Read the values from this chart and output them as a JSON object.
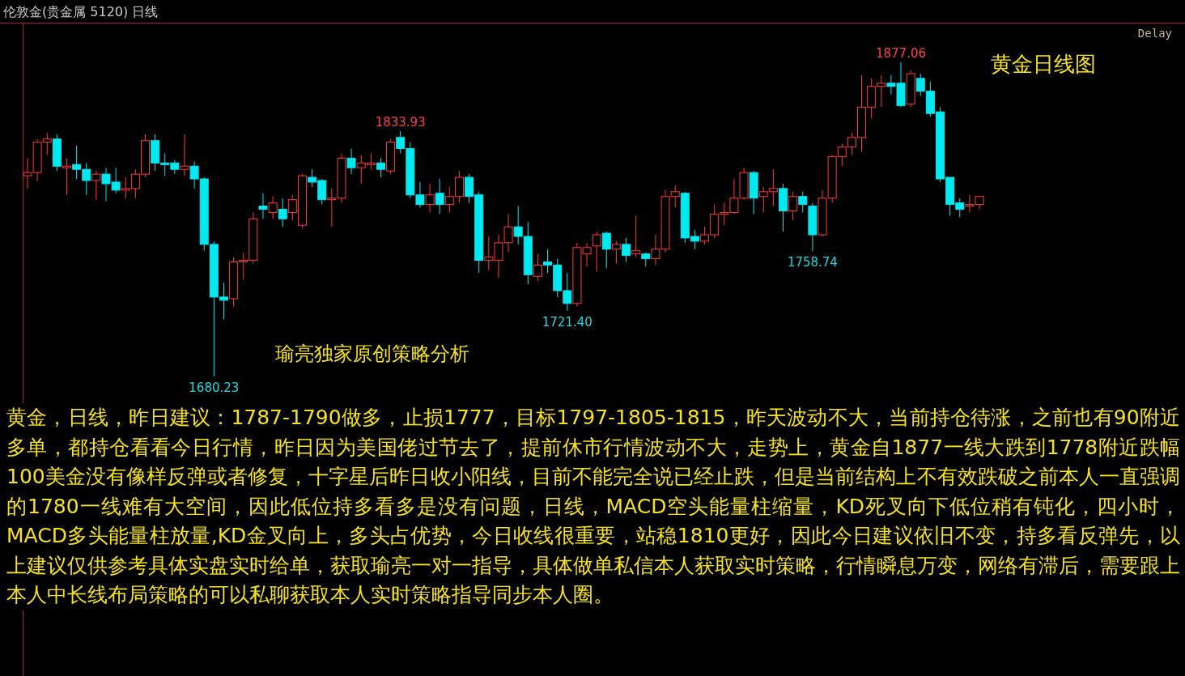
{
  "chart_data": {
    "type": "candlestick",
    "title": "伦敦金(贵金属 5120)  日线",
    "categories": [
      null,
      null,
      null,
      null,
      null,
      null,
      null,
      null,
      null,
      null,
      null,
      null,
      null,
      null,
      null,
      null,
      null,
      null,
      null,
      null,
      null,
      null,
      null,
      null,
      null,
      null,
      null,
      null,
      null,
      null,
      null,
      null,
      null,
      null,
      null,
      null,
      null,
      null,
      null,
      null,
      null,
      null,
      null,
      null,
      null,
      null,
      null,
      null,
      null,
      null,
      null,
      null,
      null,
      null,
      null,
      null,
      null,
      null,
      null,
      null,
      null,
      null,
      null,
      null,
      null,
      null,
      null,
      null,
      null,
      null,
      null,
      null,
      null,
      null,
      null,
      null,
      null,
      null,
      null,
      null,
      null,
      null,
      null,
      null,
      null,
      null,
      null,
      null,
      null,
      null,
      null,
      null,
      null,
      null,
      null,
      null,
      null,
      null
    ],
    "ohlc": [
      [
        1806,
        1817,
        1798,
        1808
      ],
      [
        1808,
        1829,
        1803,
        1827
      ],
      [
        1827,
        1833,
        1819,
        1829
      ],
      [
        1829,
        1832,
        1809,
        1812
      ],
      [
        1811,
        1817,
        1794,
        1812
      ],
      [
        1813,
        1825,
        1804,
        1810
      ],
      [
        1810,
        1814,
        1794,
        1803
      ],
      [
        1803,
        1809,
        1791,
        1807
      ],
      [
        1807,
        1811,
        1790,
        1801
      ],
      [
        1802,
        1811,
        1795,
        1797
      ],
      [
        1797,
        1805,
        1792,
        1798
      ],
      [
        1798,
        1810,
        1792,
        1807
      ],
      [
        1807,
        1832,
        1805,
        1828
      ],
      [
        1828,
        1832,
        1809,
        1814
      ],
      [
        1814,
        1820,
        1806,
        1813
      ],
      [
        1814,
        1816,
        1807,
        1810
      ],
      [
        1810,
        1832,
        1806,
        1812
      ],
      [
        1812,
        1815,
        1798,
        1804
      ],
      [
        1804,
        1805,
        1759,
        1763
      ],
      [
        1763,
        1765,
        1680.23,
        1730
      ],
      [
        1730,
        1739,
        1716,
        1728
      ],
      [
        1729,
        1755,
        1724,
        1752
      ],
      [
        1752,
        1758,
        1741,
        1753
      ],
      [
        1753,
        1783,
        1751,
        1779
      ],
      [
        1787,
        1795,
        1779,
        1785
      ],
      [
        1783,
        1793,
        1779,
        1789
      ],
      [
        1785,
        1792,
        1774,
        1779
      ],
      [
        1783,
        1794,
        1778,
        1791
      ],
      [
        1775,
        1807,
        1773,
        1806
      ],
      [
        1805,
        1810,
        1799,
        1802
      ],
      [
        1803,
        1804,
        1788,
        1791
      ],
      [
        1791,
        1798,
        1774,
        1792
      ],
      [
        1792,
        1820,
        1789,
        1817
      ],
      [
        1817,
        1823,
        1807,
        1811
      ],
      [
        1811,
        1819,
        1801,
        1814
      ],
      [
        1813,
        1820,
        1810,
        1814
      ],
      [
        1814,
        1817,
        1805,
        1810
      ],
      [
        1809,
        1829,
        1807,
        1827
      ],
      [
        1830,
        1833.93,
        1820,
        1823
      ],
      [
        1823,
        1827,
        1792,
        1794
      ],
      [
        1794,
        1802,
        1786,
        1788
      ],
      [
        1788,
        1801,
        1783,
        1794
      ],
      [
        1795,
        1804,
        1782,
        1788
      ],
      [
        1788,
        1799,
        1783,
        1793
      ],
      [
        1793,
        1809,
        1789,
        1805
      ],
      [
        1805,
        1807,
        1789,
        1793
      ],
      [
        1794,
        1796,
        1745,
        1753
      ],
      [
        1753,
        1768,
        1747,
        1755
      ],
      [
        1753,
        1769,
        1742,
        1764
      ],
      [
        1764,
        1782,
        1758,
        1774
      ],
      [
        1774,
        1787,
        1763,
        1768
      ],
      [
        1768,
        1777,
        1738,
        1744
      ],
      [
        1743,
        1757,
        1740,
        1750
      ],
      [
        1752,
        1760,
        1745,
        1750
      ],
      [
        1750,
        1754,
        1730,
        1734
      ],
      [
        1734,
        1745,
        1721.4,
        1726
      ],
      [
        1726,
        1764,
        1724,
        1761
      ],
      [
        1757,
        1764,
        1749,
        1761
      ],
      [
        1762,
        1771,
        1746,
        1769
      ],
      [
        1770,
        1771,
        1748,
        1760
      ],
      [
        1760,
        1765,
        1751,
        1763
      ],
      [
        1763,
        1767,
        1752,
        1756
      ],
      [
        1757,
        1781,
        1755,
        1759
      ],
      [
        1757,
        1758,
        1749,
        1754
      ],
      [
        1754,
        1769,
        1750,
        1760
      ],
      [
        1760,
        1797,
        1758,
        1793
      ],
      [
        1793,
        1800,
        1786,
        1796
      ],
      [
        1795,
        1796,
        1764,
        1767
      ],
      [
        1768,
        1772,
        1760,
        1765
      ],
      [
        1765,
        1774,
        1763,
        1769
      ],
      [
        1769,
        1788,
        1767,
        1782
      ],
      [
        1782,
        1789,
        1775,
        1783
      ],
      [
        1783,
        1804,
        1782,
        1792
      ],
      [
        1792,
        1811,
        1791,
        1808
      ],
      [
        1808,
        1809,
        1782,
        1792
      ],
      [
        1793,
        1799,
        1783,
        1796
      ],
      [
        1796,
        1810,
        1787,
        1798
      ],
      [
        1798,
        1801,
        1771,
        1784
      ],
      [
        1784,
        1796,
        1778,
        1793
      ],
      [
        1793,
        1796,
        1783,
        1788
      ],
      [
        1787,
        1789,
        1758.74,
        1769
      ],
      [
        1769,
        1797,
        1768,
        1792
      ],
      [
        1792,
        1819,
        1789,
        1818
      ],
      [
        1818,
        1826,
        1812,
        1824
      ],
      [
        1824,
        1833,
        1819,
        1830
      ],
      [
        1830,
        1869,
        1821,
        1849
      ],
      [
        1849,
        1867,
        1842,
        1862
      ],
      [
        1862,
        1869,
        1849,
        1864
      ],
      [
        1864,
        1869,
        1857,
        1862
      ],
      [
        1864,
        1877.06,
        1849,
        1850
      ],
      [
        1851,
        1872,
        1849,
        1870
      ],
      [
        1867,
        1870,
        1856,
        1859
      ],
      [
        1859,
        1865,
        1843,
        1845
      ],
      [
        1846,
        1849,
        1802,
        1804
      ],
      [
        1805,
        1805,
        1781,
        1788
      ],
      [
        1789,
        1792,
        1780,
        1785
      ],
      [
        1787,
        1794,
        1783,
        1788
      ],
      [
        1788,
        1793,
        1785,
        1793
      ]
    ],
    "annotations": [
      {
        "text": "1877.06",
        "y": 1877.06
      },
      {
        "text": "1833.93",
        "y": 1833.93
      },
      {
        "text": "1680.23",
        "y": 1680.23
      },
      {
        "text": "1721.40",
        "y": 1721.4
      },
      {
        "text": "1758.74",
        "y": 1758.74
      },
      "黄金日线图",
      "瑜亮独家原创策略分析",
      "Delay",
      "黄金，日线，昨日建议：1787-1790做多，止损1777，目标1797-1805-1815，昨天波动不大，当前持仓待涨，之前也有90附近多单，都持仓看看今日行情，昨日因为美国佬过节去了，提前休市行情波动不大，走势上，黄金自1877一线大跌到1778附近跌幅100美金没有像样反弹或者修复，十字星后昨日收小阳线，目前不能完全说已经止跌，但是当前结构上不有效跌破之前本人一直强调的1780一线难有大空间，因此低位持多看多是没有问题，日线，MACD空头能量柱缩量，KD死叉向下低位稍有钝化，四小时，MACD多头能量柱放量,KD金叉向上，多头占优势，今日收线很重要，站稳1810更好，因此今日建议依旧不变，持多看反弹先，以上建议仅供参考具体实盘实时给单，获取瑜亮一对一指导，具体做单私信本人获取实时策略，行情瞬息万变，网络有滞后，需要跟上本人中长线布局策略的可以私聊获取本人实时策略指导同步本人圈。"
    ]
  }
}
